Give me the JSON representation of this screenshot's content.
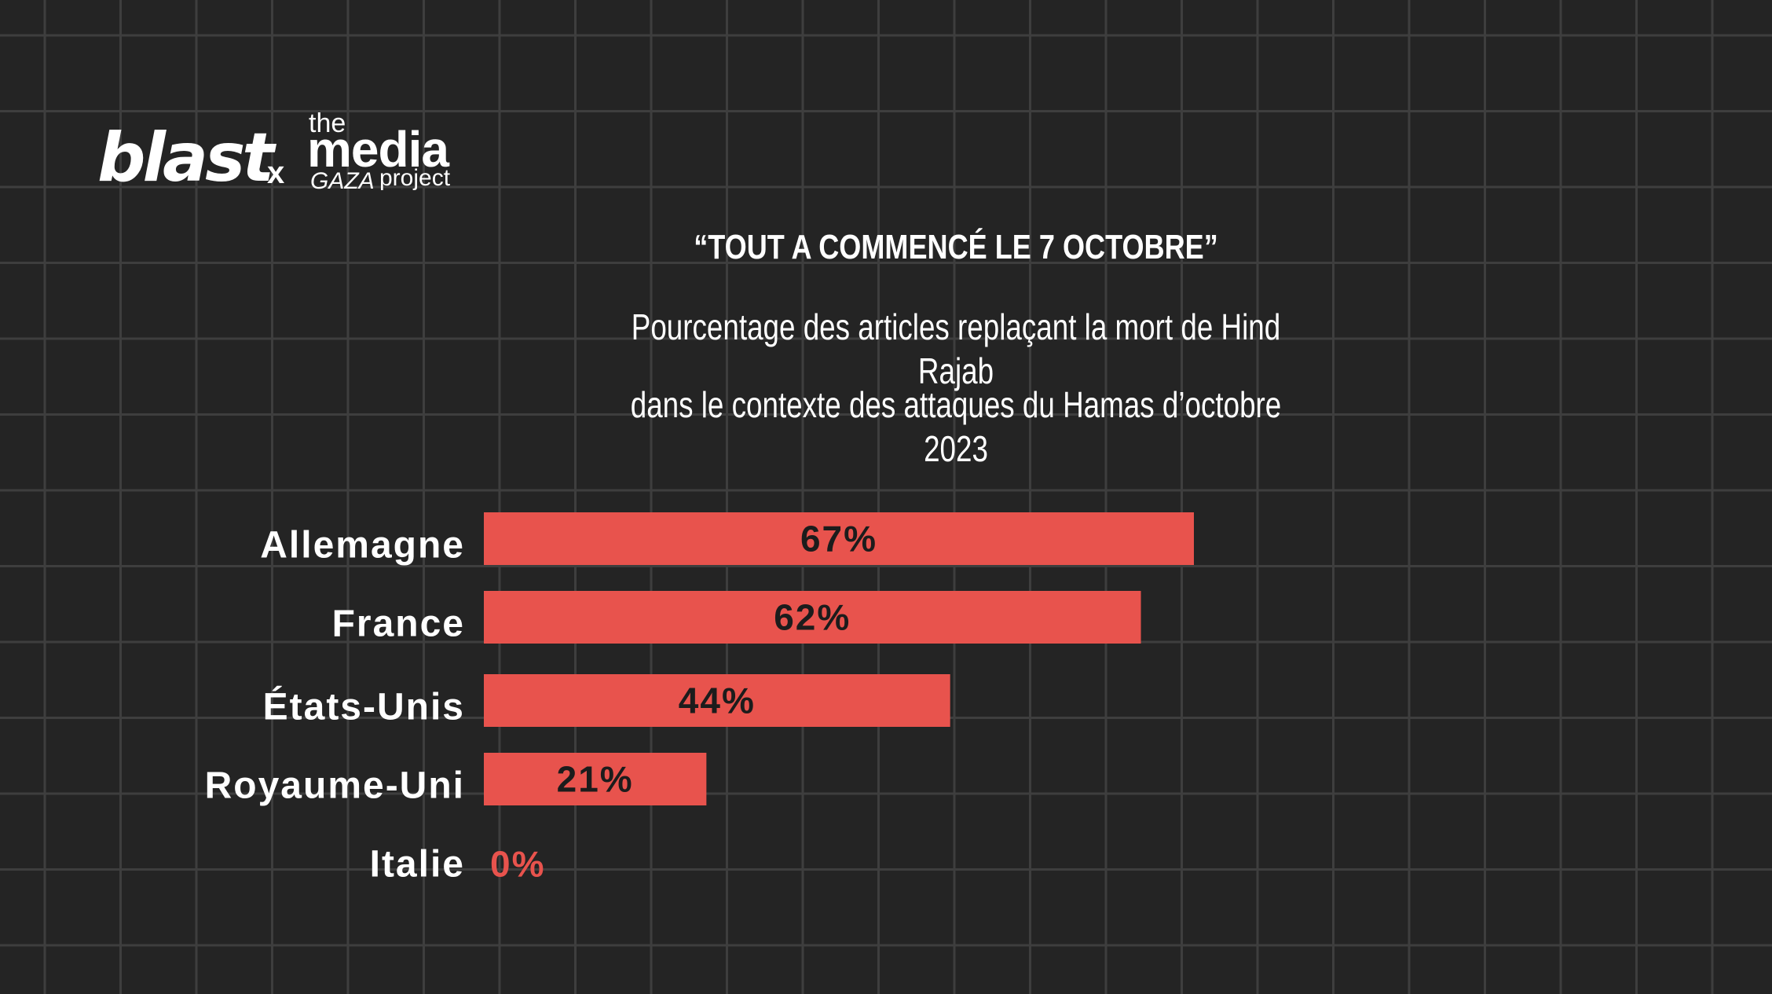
{
  "branding": {
    "blast": "blast",
    "separator": "x",
    "partner_the": "the",
    "partner_media": "media",
    "partner_gaza": "GAZA",
    "partner_project": "project"
  },
  "colors": {
    "background": "#242424",
    "grid": "#3e3e3e",
    "bar": "#e8534d",
    "bar_label": "#1c1c1c",
    "text": "#ffffff"
  },
  "chart_data": {
    "type": "bar",
    "orientation": "horizontal",
    "title": "“TOUT A COMMENCÉ LE 7 OCTOBRE”",
    "subtitle_lines": [
      "Pourcentage des articles replaçant la mort de Hind Rajab",
      "dans le contexte des attaques du Hamas d’octobre 2023"
    ],
    "categories": [
      "Allemagne",
      "France",
      "États-Unis",
      "Royaume-Uni",
      "Italie"
    ],
    "values": [
      67,
      62,
      44,
      21,
      0
    ],
    "value_labels": [
      "67%",
      "62%",
      "44%",
      "21%",
      "0%"
    ],
    "unit": "%",
    "xlim": [
      0,
      100
    ],
    "grid": true,
    "legend": "none"
  }
}
